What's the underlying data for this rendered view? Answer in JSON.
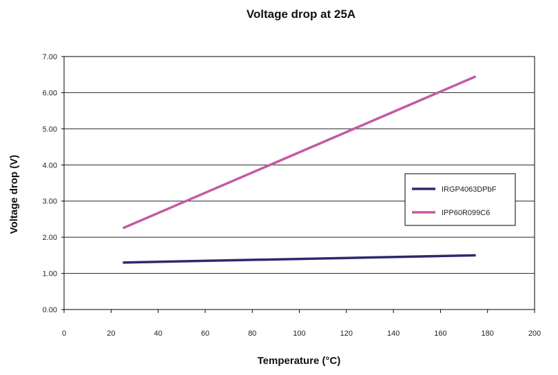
{
  "chart_data": {
    "type": "line",
    "title": "Voltage drop at 25A",
    "xlabel": "Temperature (°C)",
    "ylabel": "Voltage drop (V)",
    "xlim": [
      0,
      200
    ],
    "ylim": [
      0,
      7
    ],
    "x_ticks": [
      "0",
      "20",
      "40",
      "60",
      "80",
      "100",
      "120",
      "140",
      "160",
      "180",
      "200"
    ],
    "y_ticks": [
      "0.00",
      "1.00",
      "2.00",
      "3.00",
      "4.00",
      "5.00",
      "6.00",
      "7.00"
    ],
    "grid": "horizontal",
    "legend_position": "right",
    "series": [
      {
        "name": "IRGP4063DPbF",
        "color": "#2b2a6e",
        "x": [
          25,
          175
        ],
        "y": [
          1.3,
          1.5
        ]
      },
      {
        "name": "IPP60R099C6",
        "color": "#c45ba0",
        "x": [
          25,
          175
        ],
        "y": [
          2.25,
          6.45
        ]
      }
    ]
  }
}
